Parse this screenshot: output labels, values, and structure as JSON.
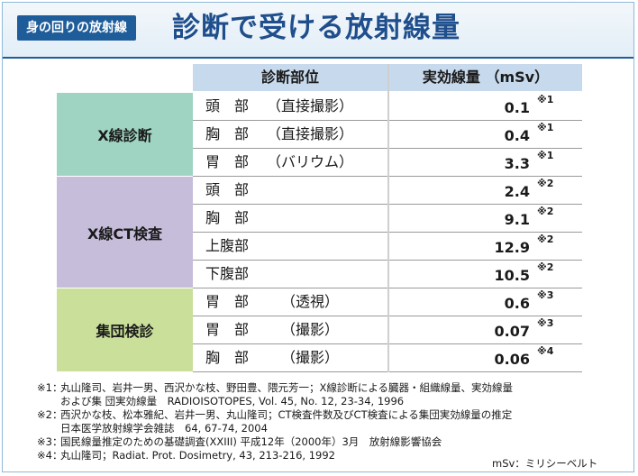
{
  "header": {
    "badge": "身の回りの放射線",
    "title": "診断で受ける放射線量"
  },
  "table": {
    "col_part": "診断部位",
    "col_dose": "実効線量 （mSv）",
    "groups": [
      {
        "label": "X線診断",
        "color": "#9fd4c2",
        "rows": [
          {
            "part": "頭　部",
            "note": "（直接撮影）",
            "value": "0.1",
            "ref": "※1"
          },
          {
            "part": "胸　部",
            "note": "（直接撮影）",
            "value": "0.4",
            "ref": "※1"
          },
          {
            "part": "胃　部",
            "note": "（バリウム）",
            "value": "3.3",
            "ref": "※1"
          }
        ]
      },
      {
        "label": "X線CT検査",
        "color": "#c6bddb",
        "rows": [
          {
            "part": "頭　部",
            "note": "",
            "value": "2.4",
            "ref": "※2"
          },
          {
            "part": "胸　部",
            "note": "",
            "value": "9.1",
            "ref": "※2"
          },
          {
            "part": "上腹部",
            "note": "",
            "value": "12.9",
            "ref": "※2"
          },
          {
            "part": "下腹部",
            "note": "",
            "value": "10.5",
            "ref": "※2"
          }
        ]
      },
      {
        "label": "集団検診",
        "color": "#c9df9a",
        "rows": [
          {
            "part": "胃　部",
            "note": "（透視）",
            "value": "0.6",
            "ref": "※3"
          },
          {
            "part": "胃　部",
            "note": "（撮影）",
            "value": "0.07",
            "ref": "※3"
          },
          {
            "part": "胸　部",
            "note": "（撮影）",
            "value": "0.06",
            "ref": "※4"
          }
        ]
      }
    ]
  },
  "notes": [
    {
      "mark": "※1：",
      "lines": [
        "丸山隆司、岩井一男、西沢かな枝、野田豊、隈元芳一；X線診断による臓器・組織線量、実効線量",
        "および集 団実効線量　RADIOISOTOPES, Vol. 45, No. 12, 23-34, 1996"
      ]
    },
    {
      "mark": "※2：",
      "lines": [
        "西沢かな枝、松本雅紀、岩井一男、丸山隆司；CT検査件数及びCT検査による集団実効線量の推定",
        "日本医学放射線学会雑誌　64, 67-74, 2004"
      ]
    },
    {
      "mark": "※3：",
      "lines": [
        "国民線量推定のための基礎調査(XXIII) 平成12年（2000年）3月　放射線影響協会"
      ]
    },
    {
      "mark": "※4：",
      "lines": [
        "丸山隆司；Radiat. Prot. Dosimetry, 43, 213-216, 1992"
      ]
    }
  ],
  "unit_note": "mSv：ミリシーベルト"
}
